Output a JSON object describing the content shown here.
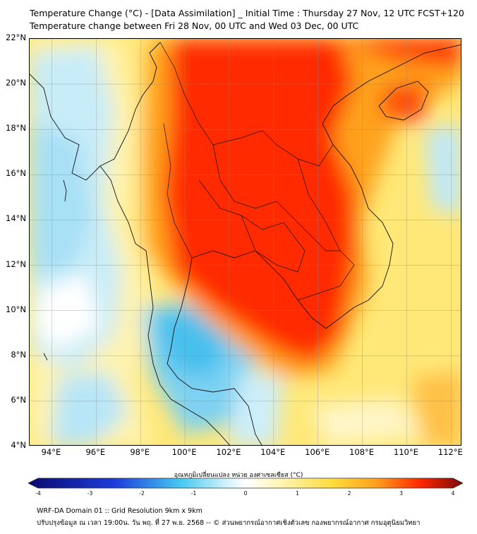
{
  "title_line1": "Temperature Change (°C) - [Data Assimilation] _ Initial Time : Thursday 27 Nov, 12 UTC FCST+120",
  "title_line2": "Temperature change between Fri 28 Nov, 00 UTC and Wed 03 Dec, 00 UTC",
  "map": {
    "lat_labels": [
      "22°N",
      "20°N",
      "18°N",
      "16°N",
      "14°N",
      "12°N",
      "10°N",
      "8°N",
      "6°N",
      "4°N"
    ],
    "lon_labels": [
      "94°E",
      "96°E",
      "98°E",
      "100°E",
      "102°E",
      "104°E",
      "106°E",
      "108°E",
      "110°E",
      "112°E"
    ],
    "lat_range": [
      4,
      22
    ],
    "lon_range": [
      93,
      112.5
    ],
    "grid": true
  },
  "colorbar": {
    "title": "อุณหภูมิเปลี่ยนแปลง หน่วย องศาเซลเซียส (°C)",
    "ticks": [
      "-4",
      "-3",
      "-2",
      "-1",
      "0",
      "1",
      "2",
      "3",
      "4"
    ],
    "range": [
      -4,
      4
    ],
    "colors": {
      "min": "#0a0a6e",
      "blue": "#1e3cdc",
      "cyan": "#46c8f0",
      "pale": "#c8f0fa",
      "white": "#ffffff",
      "light_yellow": "#fff5b4",
      "yellow": "#ffdc3c",
      "orange": "#ffa01e",
      "red": "#ff2800",
      "max": "#7a0a0a"
    }
  },
  "footer_line1": "WRF-DA Domain 01 :: Grid Resolution 9km x 9km",
  "footer_line2": "ปรับปรุงข้อมูล ณ เวลา 19:00น. วัน พฤ. ที่ 27 พ.ย. 2568 -- © ส่วนพยากรณ์อากาศเชิงตัวเลข กองพยากรณ์อากาศ กรมอุตุนิยมวิทยา"
}
